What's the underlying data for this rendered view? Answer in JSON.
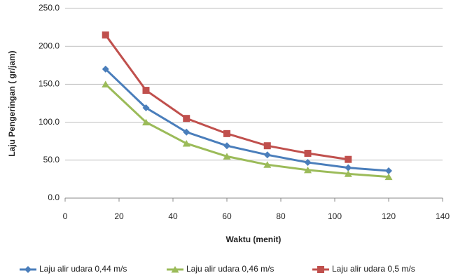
{
  "chart_data": {
    "type": "line",
    "x_label": "Waktu (menit)",
    "y_label": "Laju Pengeringan ( gr/jam)",
    "x": [
      15,
      30,
      45,
      60,
      75,
      90,
      105,
      120
    ],
    "series": [
      {
        "name": "Laju alir udara 0,44  m/s",
        "color": "#4a7ebb",
        "marker": "diamond",
        "values": [
          170,
          119,
          87,
          69,
          57,
          47,
          40,
          36
        ]
      },
      {
        "name": "Laju alir udara 0,46 m/s",
        "color": "#9bbb59",
        "marker": "triangle",
        "values": [
          150,
          100,
          72,
          55,
          44,
          37,
          32,
          28
        ]
      },
      {
        "name": "Laju alir udara 0,5 m/s",
        "color": "#c0504d",
        "marker": "square",
        "values": [
          215,
          142,
          105,
          85,
          69,
          59,
          51,
          null
        ]
      }
    ],
    "xlim": [
      0,
      140
    ],
    "xticks": [
      0,
      20,
      40,
      60,
      80,
      100,
      120,
      140
    ],
    "ylim": [
      0,
      250
    ],
    "yticks": [
      {
        "value": 0,
        "label": "0.0"
      },
      {
        "value": 50,
        "label": "50.0"
      },
      {
        "value": 100,
        "label": "100.0"
      },
      {
        "value": 150,
        "label": "150.0"
      },
      {
        "value": 200,
        "label": "200.0"
      },
      {
        "value": 250,
        "label": "250.0"
      }
    ],
    "grid": true,
    "legend": "bottom"
  }
}
